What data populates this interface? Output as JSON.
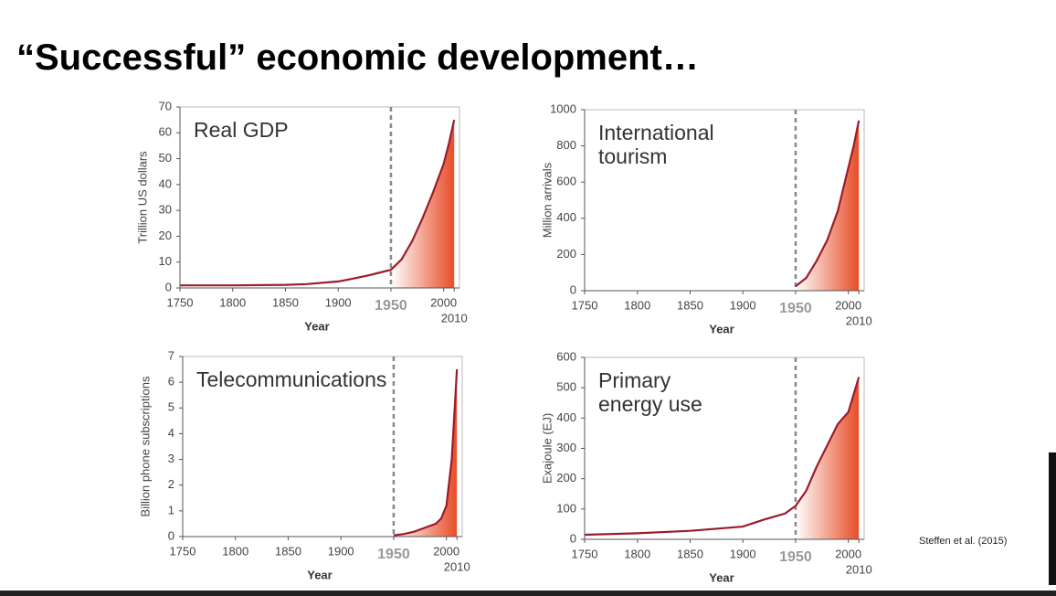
{
  "title": "“Successful” economic development…",
  "citation": "Steffen et al. (2015)",
  "chart_data": [
    {
      "type": "area",
      "title_lines": [
        "Real GDP"
      ],
      "ylabel": "Trillion US dollars",
      "xlabel": "Year",
      "x": [
        1750,
        1800,
        1850,
        1870,
        1900,
        1913,
        1930,
        1940,
        1950,
        1960,
        1970,
        1980,
        1990,
        2000,
        2005,
        2010
      ],
      "values": [
        1,
        1,
        1.2,
        1.5,
        2.5,
        3.5,
        5,
        6,
        7,
        11,
        18,
        27,
        37,
        48,
        56,
        65
      ],
      "xlim": [
        1750,
        2015
      ],
      "xticks": [
        1750,
        1800,
        1850,
        1900,
        1950,
        2000,
        2010
      ],
      "ylim": [
        0,
        70
      ],
      "yticks": [
        0,
        10,
        20,
        30,
        40,
        50,
        60,
        70
      ],
      "vline": 1950,
      "color": "#9b1c2a",
      "fill_color": "#e8522e"
    },
    {
      "type": "area",
      "title_lines": [
        "International",
        "tourism"
      ],
      "ylabel": "Million arrivals",
      "xlabel": "Year",
      "x": [
        1950,
        1960,
        1970,
        1980,
        1990,
        2000,
        2005,
        2010
      ],
      "values": [
        25,
        70,
        165,
        280,
        440,
        680,
        800,
        940
      ],
      "xlim": [
        1750,
        2015
      ],
      "xticks": [
        1750,
        1800,
        1850,
        1900,
        1950,
        2000,
        2010
      ],
      "ylim": [
        0,
        1000
      ],
      "yticks": [
        0,
        200,
        400,
        600,
        800,
        1000
      ],
      "vline": 1950,
      "color": "#9b1c2a",
      "fill_color": "#e8522e"
    },
    {
      "type": "area",
      "title_lines": [
        "Telecommunications"
      ],
      "ylabel": "Billion phone subscriptions",
      "xlabel": "Year",
      "x": [
        1950,
        1960,
        1970,
        1980,
        1990,
        1995,
        2000,
        2005,
        2010
      ],
      "values": [
        0.05,
        0.1,
        0.2,
        0.35,
        0.5,
        0.7,
        1.2,
        3,
        6.5
      ],
      "xlim": [
        1750,
        2015
      ],
      "xticks": [
        1750,
        1800,
        1850,
        1900,
        1950,
        2000,
        2010
      ],
      "ylim": [
        0,
        7
      ],
      "yticks": [
        0,
        1,
        2,
        3,
        4,
        5,
        6,
        7
      ],
      "vline": 1950,
      "color": "#9b1c2a",
      "fill_color": "#e8522e"
    },
    {
      "type": "area",
      "title_lines": [
        "Primary",
        "energy use"
      ],
      "ylabel": "Exajoule (EJ)",
      "xlabel": "Year",
      "x": [
        1750,
        1800,
        1850,
        1900,
        1920,
        1940,
        1950,
        1960,
        1970,
        1980,
        1990,
        2000,
        2010
      ],
      "values": [
        15,
        20,
        28,
        42,
        65,
        85,
        110,
        160,
        240,
        310,
        380,
        420,
        535
      ],
      "xlim": [
        1750,
        2015
      ],
      "xticks": [
        1750,
        1800,
        1850,
        1900,
        1950,
        2000,
        2010
      ],
      "ylim": [
        0,
        600
      ],
      "yticks": [
        0,
        100,
        200,
        300,
        400,
        500,
        600
      ],
      "vline": 1950,
      "color": "#9b1c2a",
      "fill_color": "#e8522e"
    }
  ]
}
